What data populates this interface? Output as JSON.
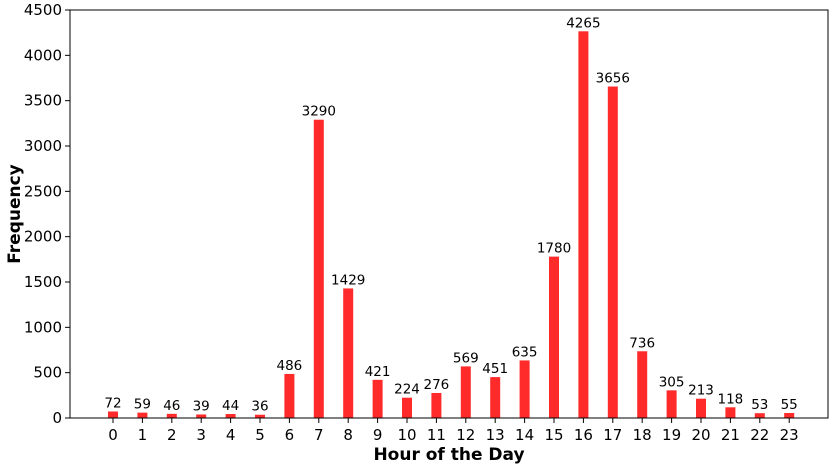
{
  "chart_data": {
    "type": "bar",
    "title": "",
    "xlabel": "Hour of the Day",
    "ylabel": "Frequency",
    "categories": [
      "0",
      "1",
      "2",
      "3",
      "4",
      "5",
      "6",
      "7",
      "8",
      "9",
      "10",
      "11",
      "12",
      "13",
      "14",
      "15",
      "16",
      "17",
      "18",
      "19",
      "20",
      "21",
      "22",
      "23"
    ],
    "values": [
      72,
      59,
      46,
      39,
      44,
      36,
      486,
      3290,
      1429,
      421,
      224,
      276,
      569,
      451,
      635,
      1780,
      4265,
      3656,
      736,
      305,
      213,
      118,
      53,
      55
    ],
    "ylim": [
      0,
      4500
    ],
    "yticks": [
      0,
      500,
      1000,
      1500,
      2000,
      2500,
      3000,
      3500,
      4000,
      4500
    ],
    "bar_color": "#ff2a2a",
    "grid": false,
    "data_labels": true
  }
}
